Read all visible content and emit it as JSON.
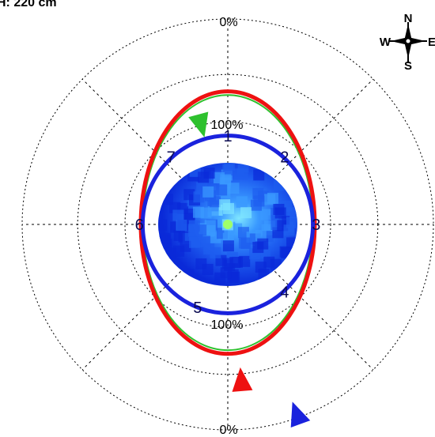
{
  "header": {
    "label": "H: 220 cm"
  },
  "compass": {
    "n": "N",
    "s": "S",
    "e": "E",
    "w": "W"
  },
  "percent_labels": {
    "top_outer": "0%",
    "bottom_outer": "0%",
    "top_inner": "100%",
    "bottom_inner": "100%"
  },
  "chart_data": {
    "type": "polar",
    "title": "",
    "ring_style": "dotted",
    "grid": true,
    "sector_labels": [
      {
        "text": "1",
        "angle_deg": 0
      },
      {
        "text": "2",
        "angle_deg": 40
      },
      {
        "text": "3",
        "angle_deg": 90
      },
      {
        "text": "4",
        "angle_deg": 140
      },
      {
        "text": "5",
        "angle_deg": 200
      },
      {
        "text": "6",
        "angle_deg": 270
      },
      {
        "text": "7",
        "angle_deg": 320
      }
    ],
    "series": [
      {
        "color": "#2ec12e",
        "shape": "ellipse",
        "semi_width": 0.46,
        "semi_height_up": 0.7,
        "semi_height_down": 0.68
      },
      {
        "color": "#ee1111",
        "shape": "ellipse",
        "semi_width": 0.47,
        "semi_height_up": 0.72,
        "semi_height_down": 0.7
      },
      {
        "color": "#1a22dd",
        "shape": "ellipse",
        "semi_width": 0.46,
        "semi_height_up": 0.48,
        "semi_height_down": 0.48
      }
    ],
    "markers": [
      {
        "color": "#2ec12e",
        "angle_deg": -15
      },
      {
        "color": "#ee1111",
        "angle_deg": 175
      },
      {
        "color": "#1a22dd",
        "angle_deg": 160
      }
    ],
    "heatmap": {
      "colors": [
        "#0a2ad8",
        "#1e5ef0",
        "#3a9aff",
        "#7fe6ff"
      ]
    }
  }
}
